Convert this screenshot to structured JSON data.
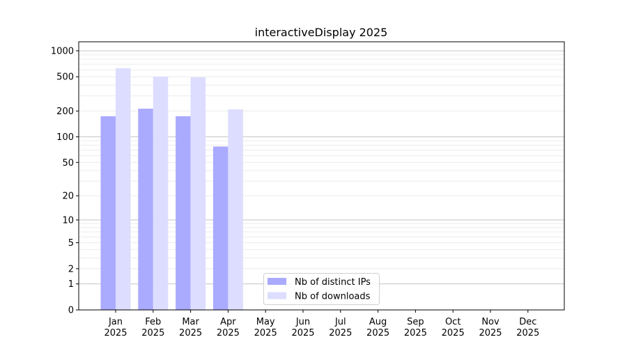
{
  "chart_data": {
    "type": "bar",
    "title": "interactiveDisplay 2025",
    "xlabel": "",
    "ylabel": "",
    "yscale": "log10(y+1)",
    "ylim": [
      0,
      1300
    ],
    "yticks": [
      0,
      1,
      2,
      5,
      10,
      20,
      50,
      100,
      200,
      500,
      1000
    ],
    "ytick_labels": [
      "0",
      "1",
      "2",
      "5",
      "10",
      "20",
      "50",
      "100",
      "200",
      "500",
      "1000"
    ],
    "grid": true,
    "legend_placement": "lower-center",
    "categories": [
      "Jan\n2025",
      "Feb\n2025",
      "Mar\n2025",
      "Apr\n2025",
      "May\n2025",
      "Jun\n2025",
      "Jul\n2025",
      "Aug\n2025",
      "Sep\n2025",
      "Oct\n2025",
      "Nov\n2025",
      "Dec\n2025"
    ],
    "category_lines": [
      [
        "Jan",
        "2025"
      ],
      [
        "Feb",
        "2025"
      ],
      [
        "Mar",
        "2025"
      ],
      [
        "Apr",
        "2025"
      ],
      [
        "May",
        "2025"
      ],
      [
        "Jun",
        "2025"
      ],
      [
        "Jul",
        "2025"
      ],
      [
        "Aug",
        "2025"
      ],
      [
        "Sep",
        "2025"
      ],
      [
        "Oct",
        "2025"
      ],
      [
        "Nov",
        "2025"
      ],
      [
        "Dec",
        "2025"
      ]
    ],
    "series": [
      {
        "name": "Nb of distinct IPs",
        "color": "#aaaaff",
        "values": [
          174,
          213,
          174,
          77,
          0,
          0,
          0,
          0,
          0,
          0,
          0,
          0
        ]
      },
      {
        "name": "Nb of downloads",
        "color": "#ddddff",
        "values": [
          628,
          502,
          493,
          209,
          0,
          0,
          0,
          0,
          0,
          0,
          0,
          0
        ]
      }
    ]
  }
}
